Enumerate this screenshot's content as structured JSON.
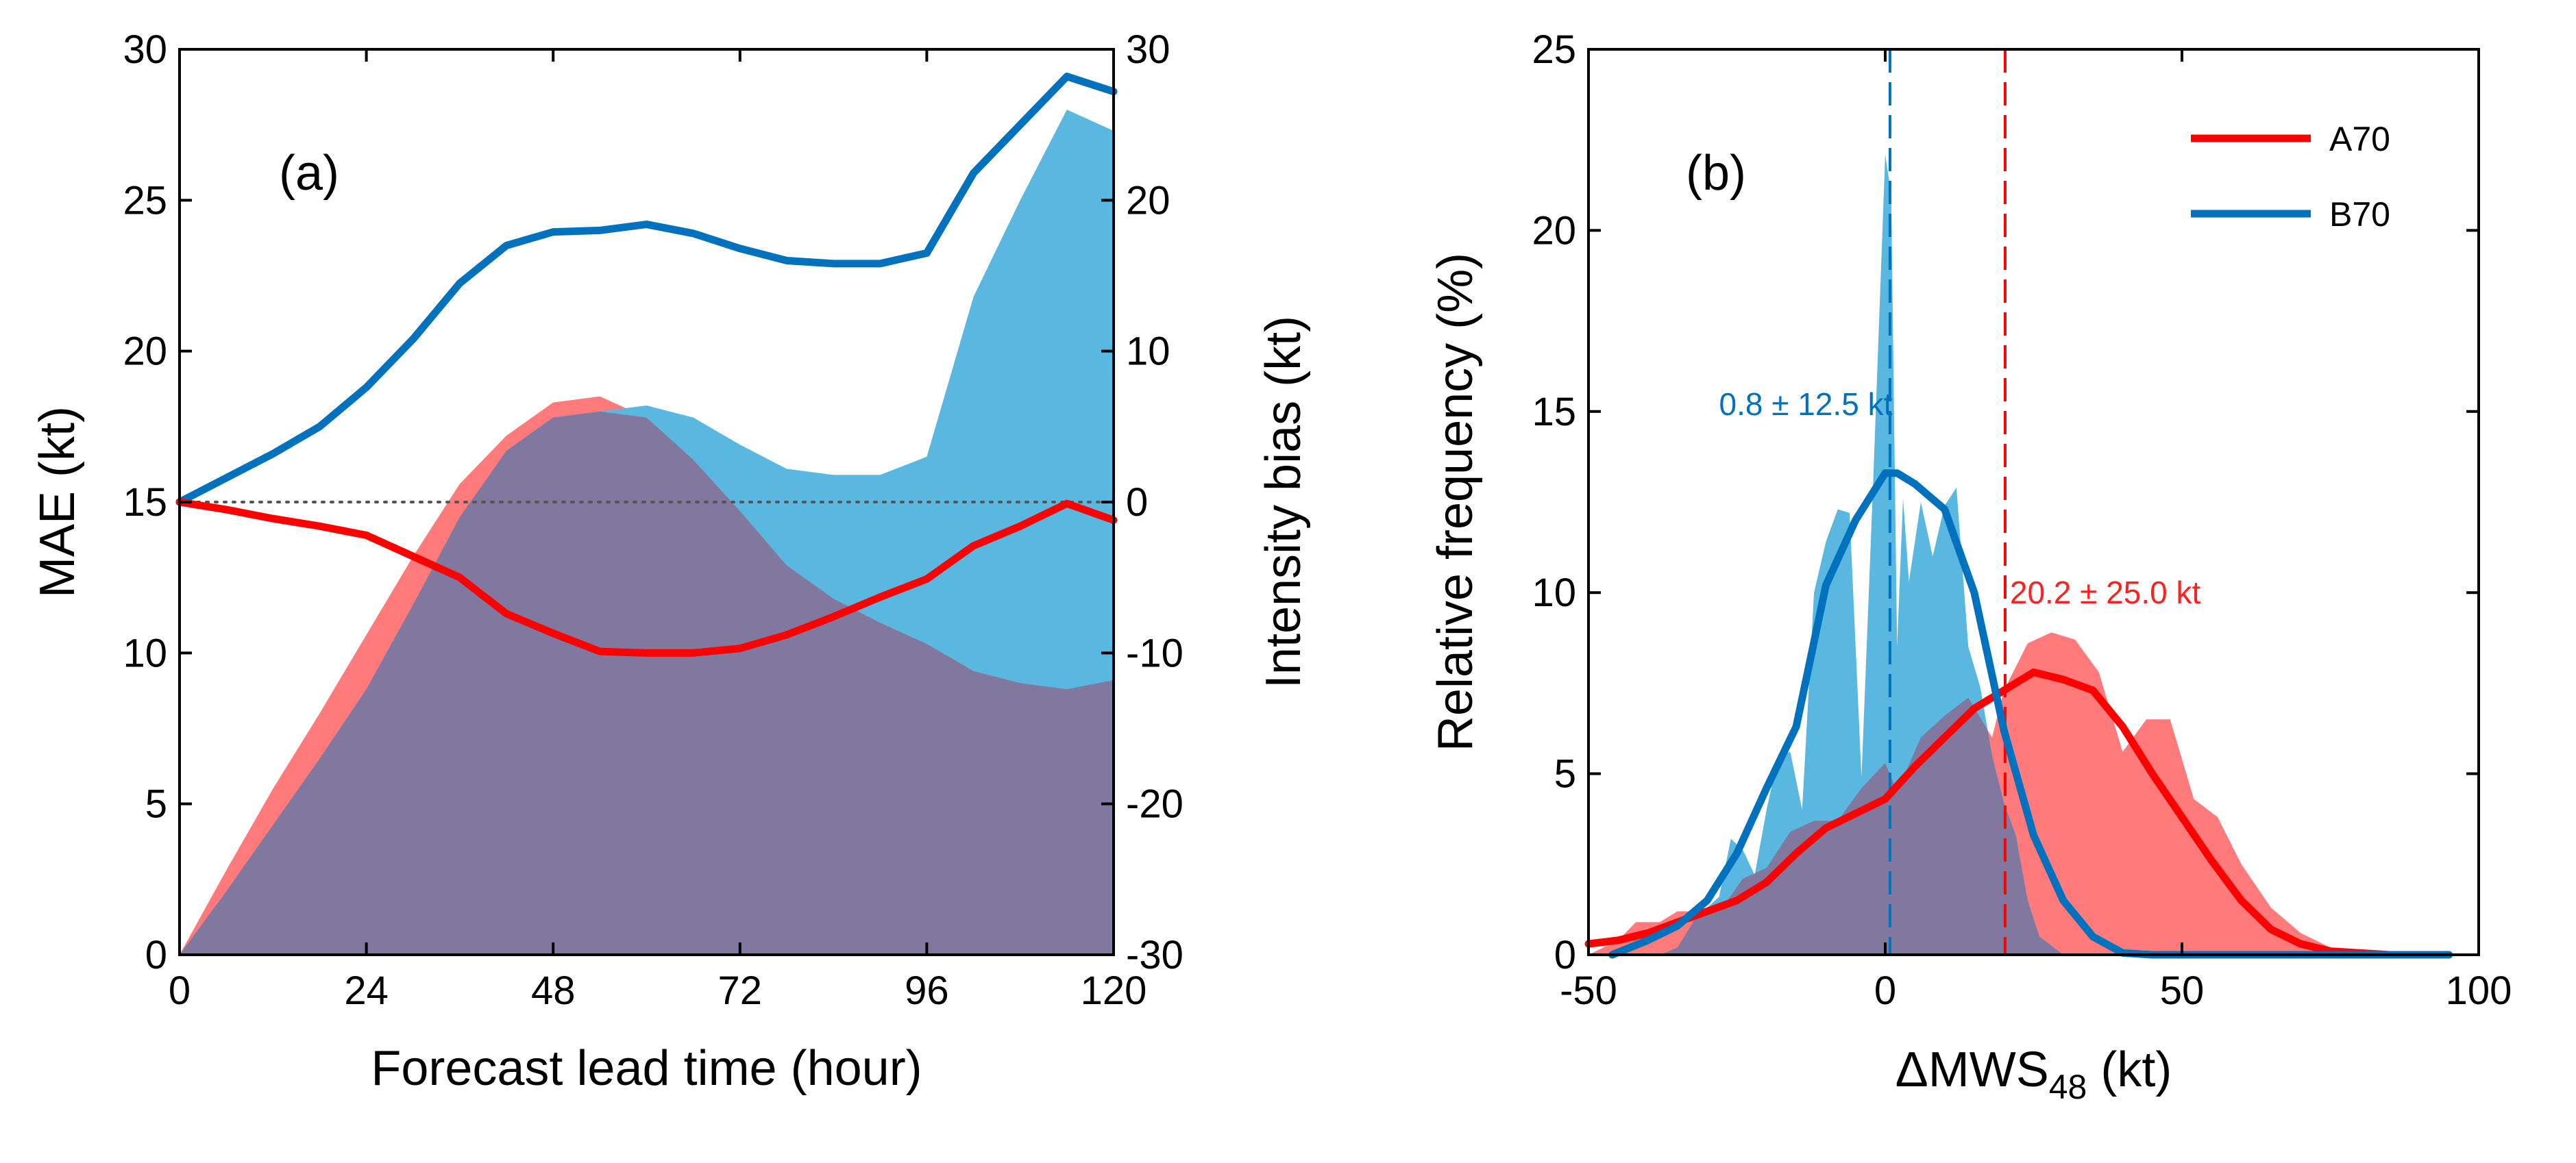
{
  "colors": {
    "red": "#ff0000",
    "blue": "#0072bd",
    "red_fill": "#ff7a7a",
    "blue_fill": "#5ab8e0",
    "overlap": "#8178a0",
    "annot_blue": "#0072bd",
    "annot_red": "#ff2020",
    "axis": "#000000"
  },
  "chart_data": [
    {
      "id": "a",
      "panel_label": "(a)",
      "type": "line+area",
      "xlabel": "Forecast lead time (hour)",
      "ylabel": "MAE (kt)",
      "y2label": "Intensity bias (kt)",
      "xlim": [
        0,
        120
      ],
      "ylim": [
        0,
        30
      ],
      "y2lim": [
        -30,
        30
      ],
      "xticks": [
        0,
        24,
        48,
        72,
        96,
        120
      ],
      "yticks": [
        0,
        5,
        10,
        15,
        20,
        25,
        30
      ],
      "y2ticks": [
        -30,
        -20,
        -10,
        0,
        10,
        20,
        30
      ],
      "zero_line": {
        "axis": "y2",
        "value": 0,
        "style": "dotted"
      },
      "areas": [
        {
          "name": "red MAE",
          "color": "red_fill",
          "x": [
            0,
            6,
            12,
            18,
            24,
            30,
            36,
            42,
            48,
            54,
            60,
            66,
            72,
            78,
            84,
            90,
            96,
            102,
            108,
            114,
            120
          ],
          "y": [
            0,
            2.8,
            5.5,
            8.0,
            10.6,
            13.2,
            15.6,
            17.2,
            18.3,
            18.5,
            17.8,
            16.4,
            14.7,
            12.9,
            11.8,
            11.0,
            10.3,
            9.4,
            9.0,
            8.8,
            9.1
          ]
        },
        {
          "name": "blue MAE",
          "color": "blue_fill",
          "x": [
            0,
            6,
            12,
            18,
            24,
            30,
            36,
            42,
            48,
            54,
            60,
            66,
            72,
            78,
            84,
            90,
            96,
            102,
            108,
            114,
            120
          ],
          "y": [
            0,
            2.1,
            4.3,
            6.5,
            8.8,
            11.6,
            14.5,
            16.7,
            17.8,
            18.0,
            18.2,
            17.8,
            16.9,
            16.1,
            15.9,
            15.9,
            16.5,
            21.8,
            25.0,
            28.0,
            27.3
          ]
        }
      ],
      "series": [
        {
          "name": "blue bias",
          "axis": "y2",
          "color": "blue",
          "x": [
            0,
            6,
            12,
            18,
            24,
            30,
            36,
            42,
            48,
            54,
            60,
            66,
            72,
            78,
            84,
            90,
            96,
            102,
            108,
            114,
            120
          ],
          "y": [
            0,
            1.6,
            3.2,
            5.0,
            7.6,
            10.8,
            14.5,
            17.0,
            17.9,
            18.0,
            18.4,
            17.8,
            16.8,
            16.0,
            15.8,
            15.8,
            16.5,
            21.8,
            25.0,
            28.2,
            27.2
          ]
        },
        {
          "name": "red bias",
          "axis": "y2",
          "color": "red",
          "x": [
            0,
            6,
            12,
            18,
            24,
            30,
            36,
            42,
            48,
            54,
            60,
            66,
            72,
            78,
            84,
            90,
            96,
            102,
            108,
            114,
            120
          ],
          "y": [
            0,
            -0.5,
            -1.1,
            -1.6,
            -2.2,
            -3.6,
            -5.0,
            -7.4,
            -8.7,
            -9.9,
            -10.0,
            -10.0,
            -9.7,
            -8.8,
            -7.6,
            -6.3,
            -5.1,
            -2.9,
            -1.6,
            -0.1,
            -1.2
          ]
        }
      ]
    },
    {
      "id": "b",
      "panel_label": "(b)",
      "type": "histogram+line",
      "xlabel_main": "ΔMWS",
      "xlabel_sub": "48",
      "xlabel_unit": " (kt)",
      "ylabel": "Relative frequency (%)",
      "xlim": [
        -50,
        100
      ],
      "ylim": [
        0,
        25
      ],
      "xticks": [
        -50,
        0,
        50,
        100
      ],
      "yticks": [
        0,
        5,
        10,
        15,
        20,
        25
      ],
      "legend": {
        "position": "top-right",
        "entries": [
          {
            "label": "A70",
            "color": "red"
          },
          {
            "label": "B70",
            "color": "blue"
          }
        ]
      },
      "annotations": [
        {
          "text": "0.8 ± 12.5 kt",
          "color": "annot_blue",
          "x": -28,
          "y": 14.9
        },
        {
          "text": "20.2 ± 25.0 kt",
          "color": "annot_red",
          "x": 21,
          "y": 9.7
        }
      ],
      "mean_lines": [
        {
          "x": 0.8,
          "color": "blue"
        },
        {
          "x": 20.2,
          "color": "red"
        }
      ],
      "areas": [
        {
          "name": "A70 histogram",
          "color": "red_fill",
          "x": [
            -50,
            -45,
            -42,
            -38,
            -35,
            -30,
            -27,
            -24,
            -20,
            -16,
            -12,
            -8,
            -4,
            0,
            2,
            6,
            10,
            14,
            18,
            20,
            24,
            28,
            32,
            36,
            40,
            44,
            48,
            52,
            56,
            60,
            65,
            70,
            75,
            80,
            85,
            90
          ],
          "y": [
            0,
            0.4,
            0.9,
            0.9,
            1.2,
            1.2,
            1.4,
            2.1,
            2.4,
            3.4,
            3.7,
            3.7,
            4.6,
            5.3,
            4.5,
            6.0,
            6.6,
            7.1,
            6.0,
            7.3,
            8.6,
            8.9,
            8.7,
            7.8,
            5.6,
            6.5,
            6.5,
            4.3,
            3.8,
            2.5,
            1.3,
            0.6,
            0.2,
            0.1,
            0,
            0
          ]
        },
        {
          "name": "B70 histogram",
          "color": "blue_fill",
          "x": [
            -48,
            -45,
            -42,
            -38,
            -35,
            -32,
            -28,
            -26,
            -24,
            -22,
            -20,
            -18,
            -16,
            -14,
            -12,
            -10,
            -8,
            -6,
            -4,
            -2,
            0,
            1,
            2,
            3,
            4,
            6,
            8,
            10,
            12,
            14,
            16,
            18,
            20,
            22,
            24,
            26,
            30,
            35,
            40
          ],
          "y": [
            0,
            0,
            0,
            0,
            0.2,
            1.0,
            1.6,
            3.2,
            2.9,
            2.2,
            4.0,
            5.5,
            5.6,
            4.0,
            10.0,
            11.4,
            12.3,
            12.2,
            4.9,
            13.2,
            22.1,
            21.0,
            8.5,
            12.6,
            10.3,
            12.5,
            11.0,
            12.4,
            12.9,
            8.5,
            7.4,
            5.5,
            4.2,
            3.3,
            1.5,
            0.5,
            0,
            0,
            0
          ]
        }
      ],
      "series": [
        {
          "name": "A70",
          "color": "red",
          "x": [
            -50,
            -45,
            -40,
            -35,
            -30,
            -25,
            -20,
            -15,
            -10,
            -5,
            0,
            5,
            10,
            15,
            20,
            25,
            30,
            35,
            40,
            45,
            50,
            55,
            60,
            65,
            70,
            75,
            80,
            85,
            90
          ],
          "y": [
            0.3,
            0.4,
            0.6,
            0.9,
            1.2,
            1.5,
            2.0,
            2.8,
            3.5,
            3.9,
            4.3,
            5.2,
            6.0,
            6.8,
            7.3,
            7.8,
            7.6,
            7.3,
            6.3,
            5.0,
            3.8,
            2.6,
            1.5,
            0.7,
            0.3,
            0.1,
            0.05,
            0,
            0
          ]
        },
        {
          "name": "B70",
          "color": "blue",
          "x": [
            -46,
            -40,
            -35,
            -30,
            -25,
            -20,
            -15,
            -10,
            -5,
            0,
            2,
            5,
            10,
            15,
            20,
            25,
            30,
            35,
            40,
            45,
            55,
            70,
            85,
            95
          ],
          "y": [
            0,
            0.4,
            0.8,
            1.5,
            2.8,
            4.6,
            6.3,
            10.2,
            12.0,
            13.3,
            13.3,
            13.0,
            12.3,
            10.0,
            6.2,
            3.3,
            1.5,
            0.5,
            0.05,
            0,
            0,
            0,
            0,
            0
          ]
        }
      ]
    }
  ]
}
